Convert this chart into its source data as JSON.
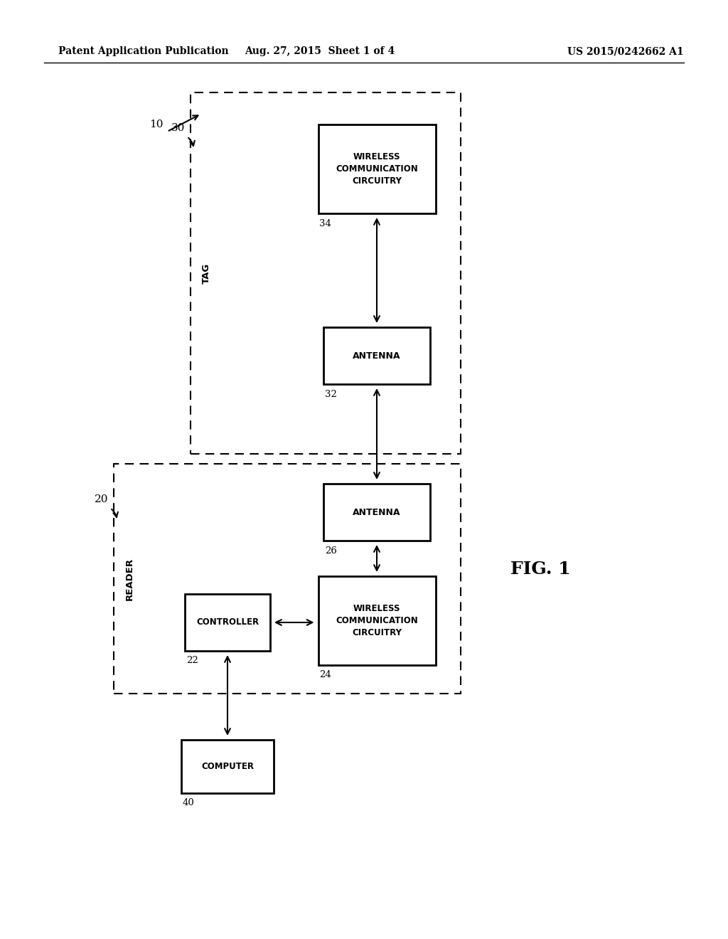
{
  "bg_color": "#ffffff",
  "header_left": "Patent Application Publication",
  "header_center": "Aug. 27, 2015  Sheet 1 of 4",
  "header_right": "US 2015/0242662 A1",
  "fig_label": "FIG. 1",
  "system_label": "10",
  "reader_label": "20",
  "reader_text": "READER",
  "tag_label": "30",
  "tag_text": "TAG",
  "box_22_label": "22",
  "box_22_text": "CONTROLLER",
  "box_24_label": "24",
  "box_24_text": "WIRELESS\nCOMMUNICATION\nCIRCUITRY",
  "box_26_label": "26",
  "box_26_text": "ANTENNA",
  "box_32_label": "32",
  "box_32_text": "ANTENNA",
  "box_34_label": "34",
  "box_34_text": "WIRELESS\nCOMMUNICATION\nCIRCUITRY",
  "box_40_label": "40",
  "box_40_text": "COMPUTER"
}
